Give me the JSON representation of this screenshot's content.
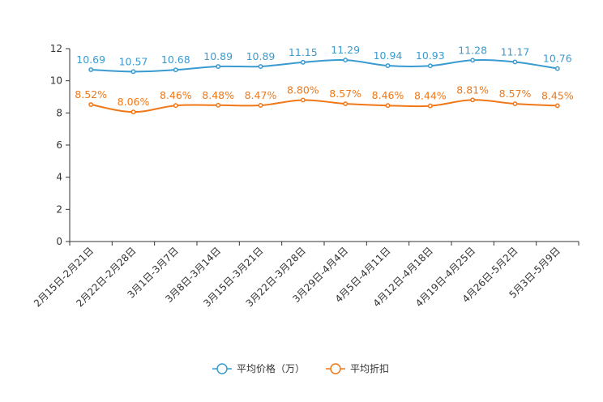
{
  "chart_data": {
    "type": "line",
    "title": "",
    "xlabel": "",
    "ylabel": "",
    "ylim": [
      0,
      12
    ],
    "yticks": [
      0,
      2,
      4,
      6,
      8,
      10,
      12
    ],
    "grid": false,
    "legend_position": "bottom-center",
    "categories": [
      "2月15日-2月21日",
      "2月22日-2月28日",
      "3月1日-3月7日",
      "3月8日-3月14日",
      "3月15日-3月21日",
      "3月22日-3月28日",
      "3月29日-4月4日",
      "4月5日-4月11日",
      "4月12日-4月18日",
      "4月19日-4月25日",
      "4月26日-5月2日",
      "5月3日-5月9日"
    ],
    "series": [
      {
        "name": "平均价格（万）",
        "color": "#3a9bd0",
        "values": [
          10.69,
          10.57,
          10.68,
          10.89,
          10.89,
          11.15,
          11.29,
          10.94,
          10.93,
          11.28,
          11.17,
          10.76
        ],
        "labels": [
          "10.69",
          "10.57",
          "10.68",
          "10.89",
          "10.89",
          "11.15",
          "11.29",
          "10.94",
          "10.93",
          "11.28",
          "11.17",
          "10.76"
        ]
      },
      {
        "name": "平均折扣",
        "color": "#f07818",
        "values": [
          8.52,
          8.06,
          8.46,
          8.48,
          8.47,
          8.8,
          8.57,
          8.46,
          8.44,
          8.81,
          8.57,
          8.45
        ],
        "labels": [
          "8.52%",
          "8.06%",
          "8.46%",
          "8.48%",
          "8.47%",
          "8.80%",
          "8.57%",
          "8.46%",
          "8.44%",
          "8.81%",
          "8.57%",
          "8.45%"
        ]
      }
    ]
  }
}
